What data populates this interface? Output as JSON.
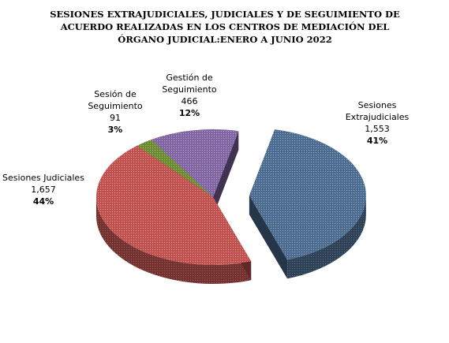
{
  "chart_data": {
    "type": "pie",
    "title_lines": [
      "SESIONES EXTRAJUDICIALES, JUDICIALES Y DE SEGUIMIENTO DE",
      "ACUERDO REALIZADAS EN LOS CENTROS DE MEDIACIÓN DEL",
      "ÓRGANO JUDICIAL:ENERO A JUNIO 2022"
    ],
    "slices": [
      {
        "label_lines": [
          "Sesiones",
          "Extrajudiciales"
        ],
        "value": 1553,
        "value_label": "1,553",
        "percent_label": "41%",
        "color": "#4a6b8f",
        "exploded": true
      },
      {
        "label_lines": [
          "Sesiones Judiciales"
        ],
        "value": 1657,
        "value_label": "1,657",
        "percent_label": "44%",
        "color": "#c0504d",
        "exploded": false
      },
      {
        "label_lines": [
          "Sesión de",
          "Seguimiento"
        ],
        "value": 91,
        "value_label": "91",
        "percent_label": "3%",
        "color": "#6b8a2e",
        "exploded": false
      },
      {
        "label_lines": [
          "Gestión de",
          "Seguimiento"
        ],
        "value": 466,
        "value_label": "466",
        "percent_label": "12%",
        "color": "#8064a2",
        "exploded": false
      }
    ]
  }
}
